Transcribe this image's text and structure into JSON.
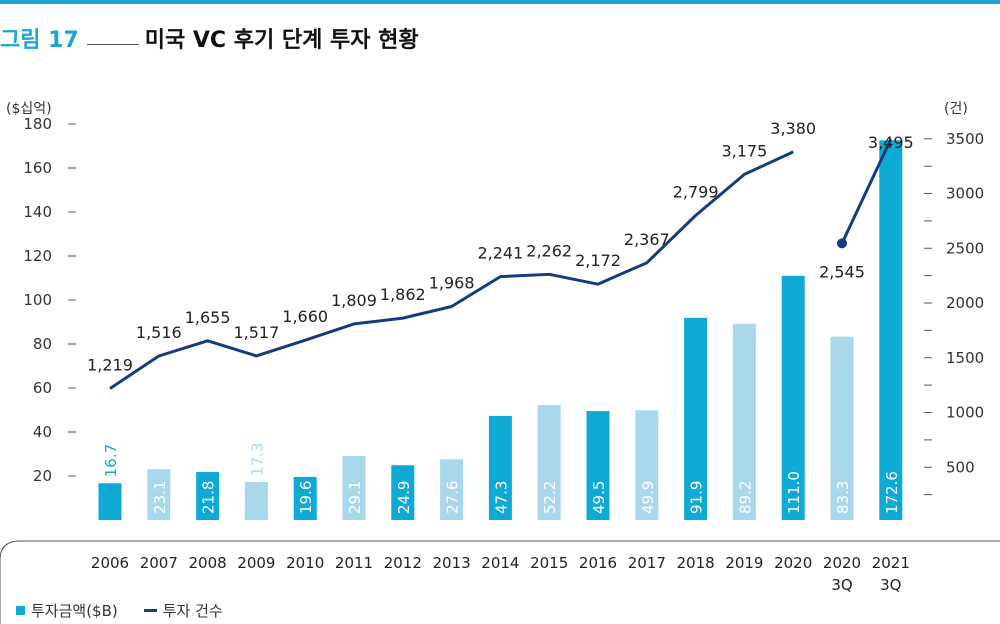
{
  "figure": {
    "label": "그림 17",
    "title": "미국 VC 후기 단계 투자 현황"
  },
  "legend": {
    "bar_label": "투자금액($B)",
    "line_label": "투자 건수"
  },
  "colors": {
    "accent": "#1aa6d6",
    "bar_dark": "#0fa9d6",
    "bar_light": "#a9d8ec",
    "line": "#123d7f"
  },
  "chart_data": {
    "type": "bar",
    "categories": [
      "2006",
      "2007",
      "2008",
      "2009",
      "2010",
      "2011",
      "2012",
      "2013",
      "2014",
      "2015",
      "2016",
      "2017",
      "2018",
      "2019",
      "2020",
      "2020\n3Q",
      "2021\n3Q"
    ],
    "y_left_label": "($십억)",
    "y_right_label": "(건)",
    "y_left_ticks": [
      20,
      40,
      60,
      80,
      100,
      120,
      140,
      160,
      180
    ],
    "y_right_ticks": [
      500,
      1000,
      1500,
      2000,
      2500,
      3000,
      3500
    ],
    "series": [
      {
        "name": "투자금액($B)",
        "kind": "bar",
        "axis": "left",
        "values": [
          16.7,
          23.1,
          21.8,
          17.3,
          19.6,
          29.1,
          24.9,
          27.6,
          47.3,
          52.2,
          49.5,
          49.9,
          91.9,
          89.2,
          111.0,
          83.3,
          172.6
        ],
        "labels": [
          "16.7",
          "23.1",
          "21.8",
          "17.3",
          "19.6",
          "29.1",
          "24.9",
          "27.6",
          "47.3",
          "52.2",
          "49.5",
          "49.9",
          "91.9",
          "89.2",
          "111.0",
          "83.3",
          "172.6"
        ],
        "shade": [
          "dark",
          "light",
          "dark",
          "light",
          "dark",
          "light",
          "dark",
          "light",
          "dark",
          "light",
          "dark",
          "light",
          "dark",
          "light",
          "dark",
          "light",
          "dark"
        ]
      },
      {
        "name": "투자 건수",
        "kind": "line",
        "axis": "right",
        "values": [
          1219,
          1516,
          1655,
          1517,
          1660,
          1809,
          1862,
          1968,
          2241,
          2262,
          2172,
          2367,
          2799,
          3175,
          3380,
          2545,
          3495
        ],
        "labels": [
          "1,219",
          "1,516",
          "1,655",
          "1,517",
          "1,660",
          "1,809",
          "1,862",
          "1,968",
          "2,241",
          "2,262",
          "2,172",
          "2,367",
          "2,799",
          "3,175",
          "3,380",
          "2,545",
          "3,495"
        ],
        "segments": [
          [
            0,
            14
          ],
          [
            15,
            16
          ]
        ]
      }
    ]
  }
}
